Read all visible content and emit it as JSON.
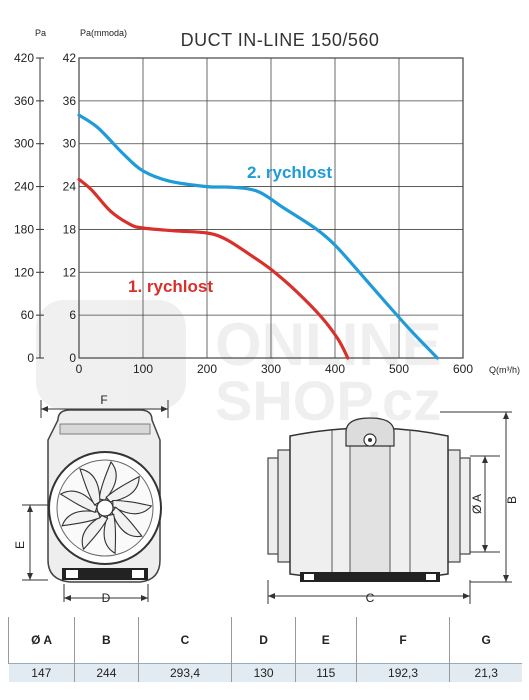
{
  "chart_data": {
    "type": "line",
    "title": "DUCT IN-LINE 150/560",
    "y_left_unit": "Pa",
    "y_right_unit": "Pa(mmoda)",
    "x_unit": "Q(m³/h)",
    "x_ticks": [
      0,
      100,
      200,
      300,
      400,
      500,
      600
    ],
    "y_left_ticks": [
      0,
      60,
      120,
      180,
      240,
      300,
      360,
      420
    ],
    "y_right_ticks": [
      0,
      6,
      12,
      18,
      24,
      30,
      36,
      42
    ],
    "xlim": [
      0,
      600
    ],
    "ylim": [
      0,
      42
    ],
    "grid": true,
    "series": [
      {
        "name": "1. rychlost",
        "color": "#d8302a",
        "points": [
          [
            0,
            25
          ],
          [
            20,
            23.5
          ],
          [
            50,
            20.5
          ],
          [
            80,
            18.7
          ],
          [
            100,
            18.2
          ],
          [
            150,
            17.8
          ],
          [
            200,
            17.5
          ],
          [
            230,
            16.6
          ],
          [
            270,
            14.3
          ],
          [
            300,
            12.4
          ],
          [
            340,
            9.3
          ],
          [
            380,
            5.6
          ],
          [
            405,
            2.6
          ],
          [
            420,
            0
          ]
        ]
      },
      {
        "name": "2. rychlost",
        "color": "#1e9bd8",
        "points": [
          [
            0,
            34
          ],
          [
            30,
            32.2
          ],
          [
            70,
            28.5
          ],
          [
            100,
            26.2
          ],
          [
            140,
            24.8
          ],
          [
            200,
            24.0
          ],
          [
            240,
            23.9
          ],
          [
            280,
            23.3
          ],
          [
            320,
            21.0
          ],
          [
            370,
            18.1
          ],
          [
            400,
            15.8
          ],
          [
            440,
            11.8
          ],
          [
            480,
            7.7
          ],
          [
            520,
            3.7
          ],
          [
            560,
            0
          ]
        ]
      }
    ]
  },
  "watermark": {
    "line1": "ONLINE",
    "line2": "SHOP.cz"
  },
  "drawing": {
    "front_labels": {
      "f": "F",
      "e": "E",
      "d": "D"
    },
    "side_labels": {
      "a": "Ø A",
      "b": "B",
      "c": "C"
    }
  },
  "colors": {
    "grid": "#444444",
    "table_row": "#e3ebf2"
  },
  "table": {
    "headers": [
      "Ø A",
      "B",
      "C",
      "D",
      "E",
      "F",
      "G"
    ],
    "values": [
      "147",
      "244",
      "293,4",
      "130",
      "115",
      "192,3",
      "21,3"
    ]
  }
}
